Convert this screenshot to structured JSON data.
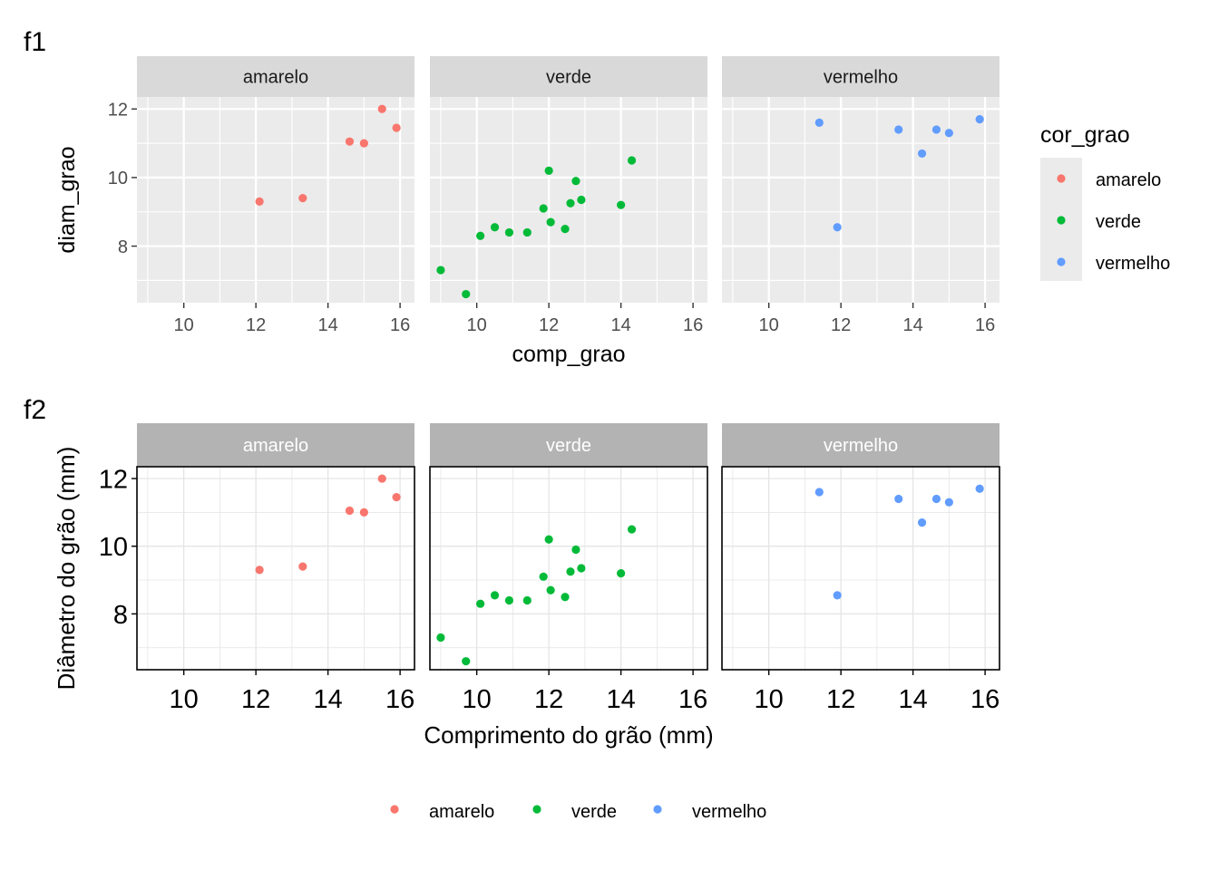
{
  "plots": [
    {
      "tag": "f1",
      "x_label": "comp_grao",
      "y_label": "diam_grao"
    },
    {
      "tag": "f2",
      "x_label": "Comprimento do grão (mm)",
      "y_label": "Diâmetro do grão (mm)"
    }
  ],
  "legend": {
    "title": "cor_grao",
    "items": [
      "amarelo",
      "verde",
      "vermelho"
    ]
  },
  "colors": {
    "amarelo": "#F8766D",
    "verde": "#00BA38",
    "vermelho": "#619CFF"
  },
  "chart_data": [
    {
      "type": "scatter",
      "title": "f1",
      "xlabel": "comp_grao",
      "ylabel": "diam_grao",
      "facets": [
        "amarelo",
        "verde",
        "vermelho"
      ],
      "xlim": [
        8.7,
        16.4
      ],
      "ylim": [
        6.35,
        12.35
      ],
      "x_ticks": [
        10,
        12,
        14,
        16
      ],
      "y_ticks": [
        8,
        10,
        12
      ],
      "grid": true,
      "legend": "right",
      "series": [
        {
          "name": "amarelo",
          "x": [
            12.1,
            13.3,
            14.6,
            15.0,
            15.5,
            15.9
          ],
          "y": [
            9.3,
            9.4,
            11.05,
            11.0,
            12.0,
            11.45
          ]
        },
        {
          "name": "verde",
          "x": [
            9.0,
            9.7,
            10.1,
            10.5,
            10.9,
            11.4,
            11.85,
            12.0,
            12.05,
            12.45,
            12.6,
            12.75,
            12.9,
            14.0,
            14.3
          ],
          "y": [
            7.3,
            6.6,
            8.3,
            8.55,
            8.4,
            8.4,
            9.1,
            10.2,
            8.7,
            8.5,
            9.25,
            9.9,
            9.35,
            9.2,
            10.5
          ]
        },
        {
          "name": "vermelho",
          "x": [
            11.4,
            11.9,
            13.6,
            14.25,
            14.65,
            15.0,
            15.85
          ],
          "y": [
            11.6,
            8.55,
            11.4,
            10.7,
            11.4,
            11.3,
            11.7
          ]
        }
      ]
    },
    {
      "type": "scatter",
      "title": "f2",
      "xlabel": "Comprimento do grão (mm)",
      "ylabel": "Diâmetro do grão (mm)",
      "facets": [
        "amarelo",
        "verde",
        "vermelho"
      ],
      "xlim": [
        8.7,
        16.4
      ],
      "ylim": [
        6.35,
        12.35
      ],
      "x_ticks": [
        10,
        12,
        14,
        16
      ],
      "y_ticks": [
        8,
        10,
        12
      ],
      "grid": true,
      "legend": "bottom",
      "series": [
        {
          "name": "amarelo",
          "x": [
            12.1,
            13.3,
            14.6,
            15.0,
            15.5,
            15.9
          ],
          "y": [
            9.3,
            9.4,
            11.05,
            11.0,
            12.0,
            11.45
          ]
        },
        {
          "name": "verde",
          "x": [
            9.0,
            9.7,
            10.1,
            10.5,
            10.9,
            11.4,
            11.85,
            12.0,
            12.05,
            12.45,
            12.6,
            12.75,
            12.9,
            14.0,
            14.3
          ],
          "y": [
            7.3,
            6.6,
            8.3,
            8.55,
            8.4,
            8.4,
            9.1,
            10.2,
            8.7,
            8.5,
            9.25,
            9.9,
            9.35,
            9.2,
            10.5
          ]
        },
        {
          "name": "vermelho",
          "x": [
            11.4,
            11.9,
            13.6,
            14.25,
            14.65,
            15.0,
            15.85
          ],
          "y": [
            11.6,
            8.55,
            11.4,
            10.7,
            11.4,
            11.3,
            11.7
          ]
        }
      ]
    }
  ]
}
